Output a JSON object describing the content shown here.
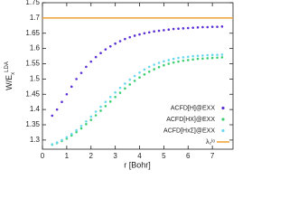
{
  "chart_data": {
    "type": "scatter",
    "xlabel": "r [Bohr]",
    "ylabel": "W/E",
    "ylabel_sub": "x",
    "ylabel_sup": "LDA",
    "x": [
      0.4,
      0.6,
      0.8,
      1.0,
      1.2,
      1.4,
      1.6,
      1.8,
      2.0,
      2.2,
      2.4,
      2.6,
      2.8,
      3.0,
      3.2,
      3.4,
      3.6,
      3.8,
      4.0,
      4.2,
      4.4,
      4.6,
      4.8,
      5.0,
      5.2,
      5.4,
      5.6,
      5.8,
      6.0,
      6.2,
      6.4,
      6.6,
      6.8,
      7.0,
      7.2,
      7.4
    ],
    "series": [
      {
        "name": "ACFD[H]@EXX",
        "color": "#5b2fd6",
        "values": [
          1.38,
          1.4,
          1.425,
          1.45,
          1.475,
          1.5,
          1.52,
          1.54,
          1.557,
          1.572,
          1.585,
          1.597,
          1.607,
          1.616,
          1.624,
          1.631,
          1.637,
          1.642,
          1.646,
          1.65,
          1.653,
          1.656,
          1.658,
          1.66,
          1.662,
          1.664,
          1.665,
          1.666,
          1.667,
          1.668,
          1.669,
          1.67,
          1.67,
          1.671,
          1.671,
          1.672
        ]
      },
      {
        "name": "ACFD[HX]@EXX",
        "color": "#3ecf72",
        "values": [
          1.285,
          1.29,
          1.297,
          1.305,
          1.315,
          1.326,
          1.338,
          1.352,
          1.366,
          1.381,
          1.396,
          1.411,
          1.426,
          1.441,
          1.455,
          1.469,
          1.482,
          1.494,
          1.505,
          1.515,
          1.524,
          1.532,
          1.539,
          1.545,
          1.55,
          1.554,
          1.557,
          1.56,
          1.562,
          1.564,
          1.566,
          1.567,
          1.568,
          1.569,
          1.57,
          1.571
        ]
      },
      {
        "name": "ACFD[HxΣ]@EXX",
        "color": "#6ad8ee",
        "values": [
          1.286,
          1.292,
          1.3,
          1.309,
          1.32,
          1.332,
          1.346,
          1.361,
          1.377,
          1.393,
          1.409,
          1.425,
          1.441,
          1.456,
          1.471,
          1.485,
          1.498,
          1.51,
          1.521,
          1.531,
          1.54,
          1.547,
          1.553,
          1.558,
          1.562,
          1.566,
          1.569,
          1.571,
          1.573,
          1.575,
          1.576,
          1.577,
          1.578,
          1.579,
          1.579,
          1.58
        ]
      }
    ],
    "hline": {
      "name": "λ₂ˡᵒ",
      "color": "#f0a030",
      "value": 1.7
    },
    "xlim": [
      0,
      7.85
    ],
    "xticks": [
      0,
      1,
      2,
      3,
      4,
      5,
      6,
      7
    ],
    "ylim": [
      1.27,
      1.75
    ],
    "yticks": [
      1.3,
      1.35,
      1.4,
      1.45,
      1.5,
      1.55,
      1.6,
      1.65,
      1.7,
      1.75
    ],
    "legend": "lower right"
  }
}
